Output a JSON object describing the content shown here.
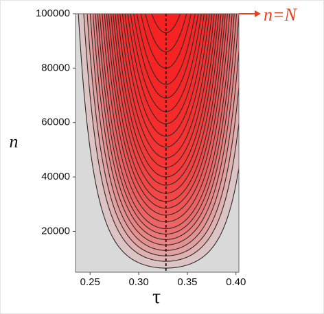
{
  "chart_data": {
    "type": "contour",
    "xlabel": "τ",
    "ylabel": "n",
    "xlim": [
      0.235,
      0.403
    ],
    "ylim": [
      5000,
      100000
    ],
    "xticks": [
      {
        "value": 0.25,
        "label": "0.25"
      },
      {
        "value": 0.3,
        "label": "0.30"
      },
      {
        "value": 0.35,
        "label": "0.35"
      },
      {
        "value": 0.4,
        "label": "0.40"
      }
    ],
    "yticks": [
      20000,
      40000,
      60000,
      80000,
      100000
    ],
    "tau_center": 0.328,
    "contour_levels": [
      6500,
      9000,
      11000,
      13000,
      15000,
      17000,
      19000,
      21000,
      23500,
      26000,
      28500,
      31000,
      34000,
      37000,
      40000,
      43500,
      47000,
      51000,
      55000,
      59500,
      64000,
      69000,
      74000,
      80000,
      86000,
      93000
    ],
    "color": "#ff1a1a",
    "line_color": "#2a2a2a",
    "background": "#d9d9d9",
    "annotation": "n=N",
    "annotation_color": "#e8401c"
  }
}
